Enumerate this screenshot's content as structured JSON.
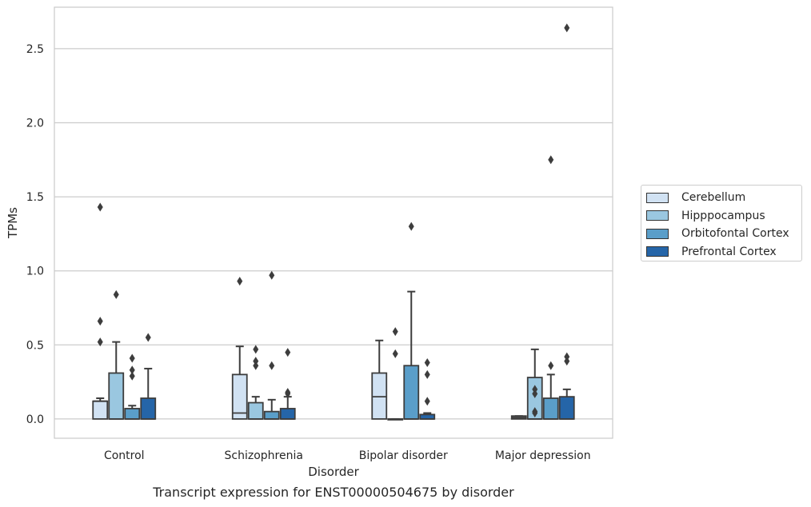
{
  "caption": "Transcript expression for ENST00000504675 by disorder",
  "chart_data": {
    "type": "box",
    "xlabel": "Disorder",
    "ylabel": "TPMs",
    "ylim": [
      -0.13,
      2.78
    ],
    "yticks": [
      0.0,
      0.5,
      1.0,
      1.5,
      2.0,
      2.5
    ],
    "ytick_labels": [
      "0.0",
      "0.5",
      "1.0",
      "1.5",
      "2.0",
      "2.5"
    ],
    "grid": "horizontal",
    "legend_position": "right",
    "categories": [
      "Control",
      "Schizophrenia",
      "Bipolar disorder",
      "Major depression"
    ],
    "series": [
      {
        "name": "Cerebellum",
        "color": "#d1e2f3",
        "boxes": [
          {
            "q1": 0.0,
            "median": 0.12,
            "q3": 0.12,
            "whisker_low": 0.0,
            "whisker_high": 0.14,
            "outliers": [
              1.43,
              0.66,
              0.52
            ]
          },
          {
            "q1": 0.0,
            "median": 0.04,
            "q3": 0.3,
            "whisker_low": 0.0,
            "whisker_high": 0.49,
            "outliers": [
              0.93
            ]
          },
          {
            "q1": 0.0,
            "median": 0.15,
            "q3": 0.31,
            "whisker_low": 0.0,
            "whisker_high": 0.53,
            "outliers": []
          },
          {
            "q1": 0.0,
            "median": 0.01,
            "q3": 0.02,
            "whisker_low": 0.0,
            "whisker_high": 0.02,
            "outliers": []
          }
        ]
      },
      {
        "name": "Hipppocampus",
        "color": "#9ac7e0",
        "boxes": [
          {
            "q1": 0.0,
            "median": 0.0,
            "q3": 0.31,
            "whisker_low": 0.0,
            "whisker_high": 0.52,
            "outliers": [
              0.84
            ]
          },
          {
            "q1": 0.0,
            "median": 0.0,
            "q3": 0.11,
            "whisker_low": 0.0,
            "whisker_high": 0.15,
            "outliers": [
              0.47,
              0.39,
              0.36
            ]
          },
          {
            "q1": 0.0,
            "median": 0.0,
            "q3": 0.0,
            "whisker_low": 0.0,
            "whisker_high": 0.0,
            "outliers": [
              0.59,
              0.44
            ]
          },
          {
            "q1": 0.0,
            "median": 0.0,
            "q3": 0.28,
            "whisker_low": 0.0,
            "whisker_high": 0.47,
            "outliers": [
              0.2,
              0.17,
              0.05,
              0.04
            ]
          }
        ]
      },
      {
        "name": "Orbitofontal Cortex",
        "color": "#5a9ec9",
        "boxes": [
          {
            "q1": 0.0,
            "median": 0.0,
            "q3": 0.07,
            "whisker_low": 0.0,
            "whisker_high": 0.09,
            "outliers": [
              0.41,
              0.33,
              0.29
            ]
          },
          {
            "q1": 0.0,
            "median": 0.0,
            "q3": 0.05,
            "whisker_low": 0.0,
            "whisker_high": 0.13,
            "outliers": [
              0.97,
              0.36
            ]
          },
          {
            "q1": 0.0,
            "median": 0.0,
            "q3": 0.36,
            "whisker_low": 0.0,
            "whisker_high": 0.86,
            "outliers": [
              1.3
            ]
          },
          {
            "q1": 0.0,
            "median": 0.0,
            "q3": 0.14,
            "whisker_low": 0.0,
            "whisker_high": 0.3,
            "outliers": [
              1.75,
              0.36
            ]
          }
        ]
      },
      {
        "name": "Prefrontal Cortex",
        "color": "#2565a8",
        "boxes": [
          {
            "q1": 0.0,
            "median": 0.0,
            "q3": 0.14,
            "whisker_low": 0.0,
            "whisker_high": 0.34,
            "outliers": [
              0.55
            ]
          },
          {
            "q1": 0.0,
            "median": 0.0,
            "q3": 0.07,
            "whisker_low": 0.0,
            "whisker_high": 0.15,
            "outliers": [
              0.45,
              0.18,
              0.17
            ]
          },
          {
            "q1": 0.0,
            "median": 0.0,
            "q3": 0.03,
            "whisker_low": 0.0,
            "whisker_high": 0.04,
            "outliers": [
              0.38,
              0.3,
              0.12
            ]
          },
          {
            "q1": 0.0,
            "median": 0.0,
            "q3": 0.15,
            "whisker_low": 0.0,
            "whisker_high": 0.2,
            "outliers": [
              2.64,
              0.42,
              0.39
            ]
          }
        ]
      }
    ]
  }
}
